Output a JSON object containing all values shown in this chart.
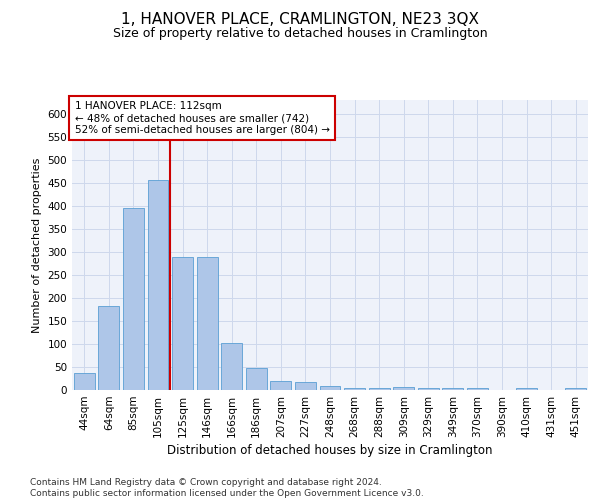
{
  "title": "1, HANOVER PLACE, CRAMLINGTON, NE23 3QX",
  "subtitle": "Size of property relative to detached houses in Cramlington",
  "xlabel": "Distribution of detached houses by size in Cramlington",
  "ylabel": "Number of detached properties",
  "categories": [
    "44sqm",
    "64sqm",
    "85sqm",
    "105sqm",
    "125sqm",
    "146sqm",
    "166sqm",
    "186sqm",
    "207sqm",
    "227sqm",
    "248sqm",
    "268sqm",
    "288sqm",
    "309sqm",
    "329sqm",
    "349sqm",
    "370sqm",
    "390sqm",
    "410sqm",
    "431sqm",
    "451sqm"
  ],
  "values": [
    36,
    182,
    395,
    457,
    288,
    290,
    102,
    47,
    20,
    17,
    8,
    4,
    5,
    6,
    5,
    5,
    5,
    1,
    5,
    1,
    4
  ],
  "bar_color": "#aec6e8",
  "bar_edge_color": "#5a9fd4",
  "grid_color": "#cdd8ec",
  "background_color": "#eef2fa",
  "vline_color": "#cc0000",
  "annotation_text": "1 HANOVER PLACE: 112sqm\n← 48% of detached houses are smaller (742)\n52% of semi-detached houses are larger (804) →",
  "annotation_box_color": "#ffffff",
  "annotation_box_edge_color": "#cc0000",
  "footer_text": "Contains HM Land Registry data © Crown copyright and database right 2024.\nContains public sector information licensed under the Open Government Licence v3.0.",
  "ylim": [
    0,
    630
  ],
  "yticks": [
    0,
    50,
    100,
    150,
    200,
    250,
    300,
    350,
    400,
    450,
    500,
    550,
    600
  ],
  "title_fontsize": 11,
  "subtitle_fontsize": 9,
  "axis_label_fontsize": 8,
  "tick_fontsize": 7.5,
  "footer_fontsize": 6.5,
  "annotation_fontsize": 7.5
}
